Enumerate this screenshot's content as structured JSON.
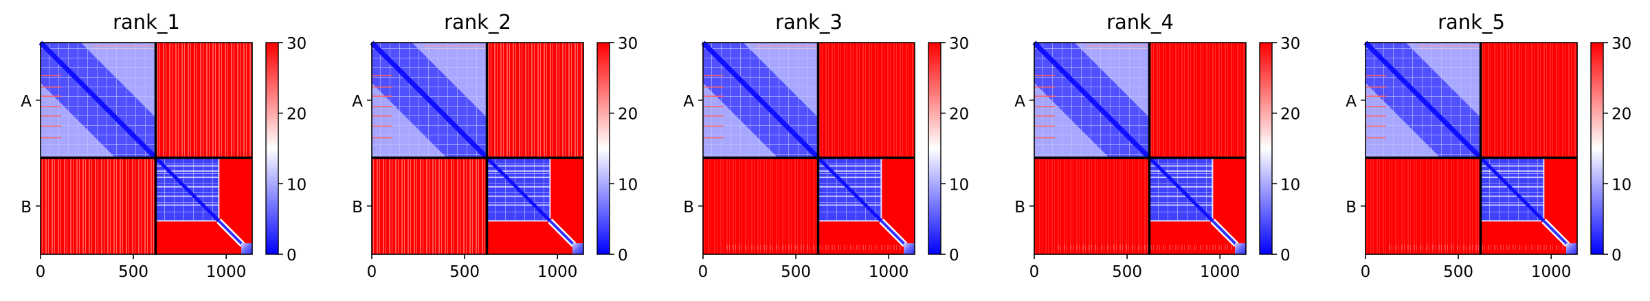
{
  "figure_type": "PAE heatmap panels",
  "chart_data": [
    {
      "type": "heatmap",
      "title": "rank_1",
      "chain_labels": [
        "A",
        "B"
      ],
      "x_ticks": [
        0,
        500,
        1000
      ],
      "xlim": [
        0,
        1140
      ],
      "chain_boundary": 620,
      "chain_B_dense_end": 960,
      "colorbar": {
        "min": 0,
        "max": 30,
        "ticks": [
          0,
          10,
          20,
          30
        ],
        "colormap": "bwr"
      }
    },
    {
      "type": "heatmap",
      "title": "rank_2",
      "chain_labels": [
        "A",
        "B"
      ],
      "x_ticks": [
        0,
        500,
        1000
      ],
      "xlim": [
        0,
        1140
      ],
      "chain_boundary": 620,
      "chain_B_dense_end": 960,
      "colorbar": {
        "min": 0,
        "max": 30,
        "ticks": [
          0,
          10,
          20,
          30
        ],
        "colormap": "bwr"
      }
    },
    {
      "type": "heatmap",
      "title": "rank_3",
      "chain_labels": [
        "A",
        "B"
      ],
      "x_ticks": [
        0,
        500,
        1000
      ],
      "xlim": [
        0,
        1140
      ],
      "chain_boundary": 620,
      "chain_B_dense_end": 960,
      "colorbar": {
        "min": 0,
        "max": 30,
        "ticks": [
          0,
          10,
          20,
          30
        ],
        "colormap": "bwr"
      }
    },
    {
      "type": "heatmap",
      "title": "rank_4",
      "chain_labels": [
        "A",
        "B"
      ],
      "x_ticks": [
        0,
        500,
        1000
      ],
      "xlim": [
        0,
        1140
      ],
      "chain_boundary": 620,
      "chain_B_dense_end": 960,
      "colorbar": {
        "min": 0,
        "max": 30,
        "ticks": [
          0,
          10,
          20,
          30
        ],
        "colormap": "bwr"
      }
    },
    {
      "type": "heatmap",
      "title": "rank_5",
      "chain_labels": [
        "A",
        "B"
      ],
      "x_ticks": [
        0,
        500,
        1000
      ],
      "xlim": [
        0,
        1140
      ],
      "chain_boundary": 620,
      "chain_B_dense_end": 960,
      "colorbar": {
        "min": 0,
        "max": 30,
        "ticks": [
          0,
          10,
          20,
          30
        ],
        "colormap": "bwr"
      }
    }
  ]
}
